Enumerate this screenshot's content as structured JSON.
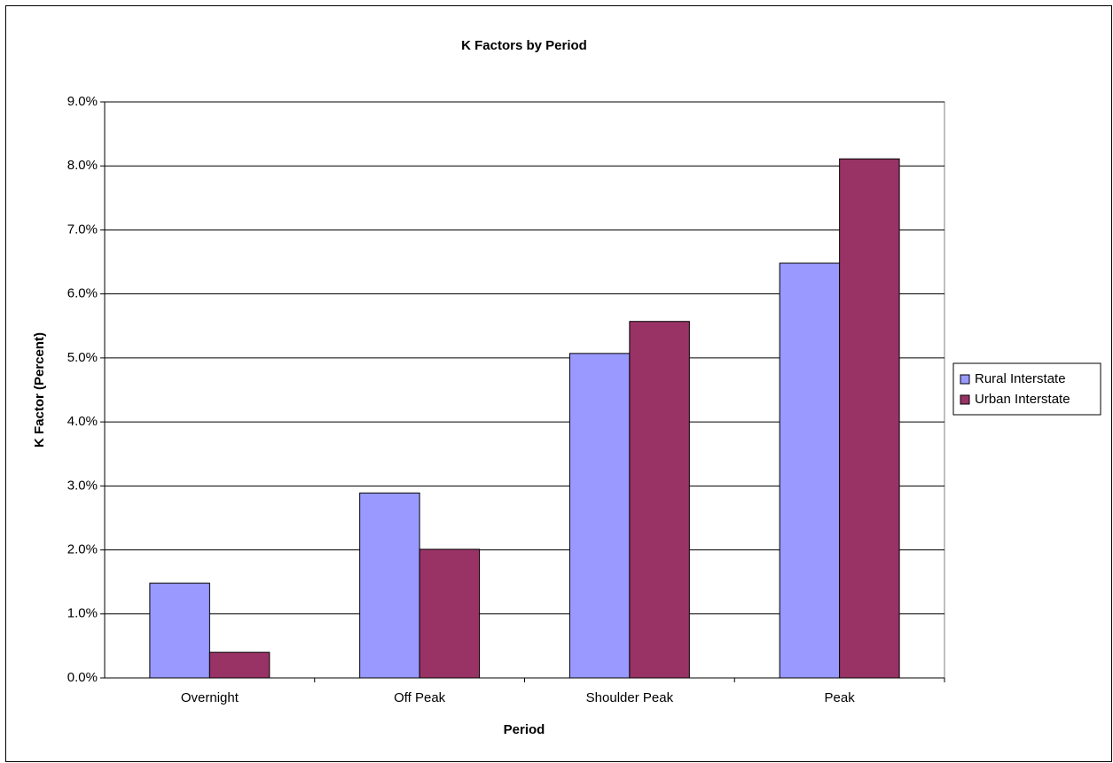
{
  "chart_data": {
    "type": "bar",
    "title": "K Factors by Period",
    "x_label": "Period",
    "y_label": "K Factor (Percent)",
    "categories": [
      "Overnight",
      "Off Peak",
      "Shoulder Peak",
      "Peak"
    ],
    "series": [
      {
        "name": "Rural Interstate",
        "color": "#9999ff",
        "values": [
          1.48,
          2.89,
          5.07,
          6.48
        ]
      },
      {
        "name": "Urban Interstate",
        "color": "#993366",
        "values": [
          0.4,
          2.01,
          5.57,
          8.11
        ]
      }
    ],
    "ylim": [
      0,
      9
    ],
    "yticks": [
      {
        "value": 0,
        "label": "0.0%"
      },
      {
        "value": 1,
        "label": "1.0%"
      },
      {
        "value": 2,
        "label": "2.0%"
      },
      {
        "value": 3,
        "label": "3.0%"
      },
      {
        "value": 4,
        "label": "4.0%"
      },
      {
        "value": 5,
        "label": "5.0%"
      },
      {
        "value": 6,
        "label": "6.0%"
      },
      {
        "value": 7,
        "label": "7.0%"
      },
      {
        "value": 8,
        "label": "8.0%"
      },
      {
        "value": 9,
        "label": "9.0%"
      }
    ],
    "grid": true,
    "legend": "right"
  }
}
